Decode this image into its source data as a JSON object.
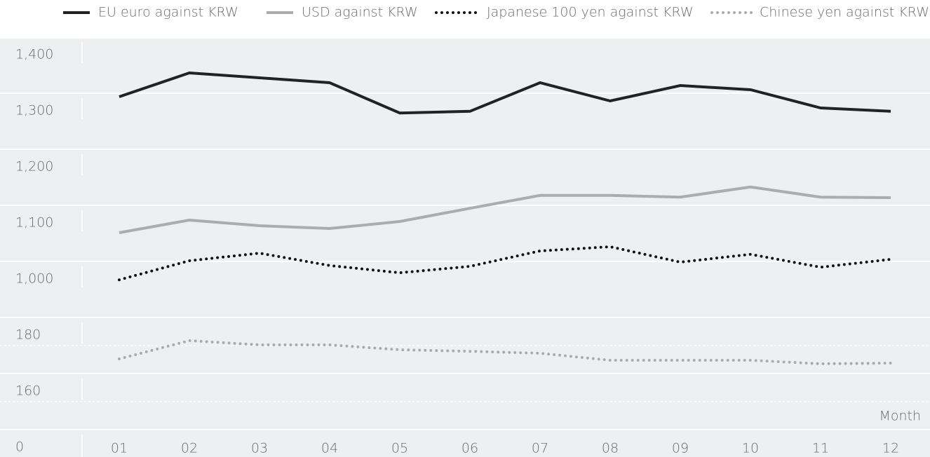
{
  "chart_data": {
    "type": "line",
    "x_label": "Month",
    "categories": [
      "01",
      "02",
      "03",
      "04",
      "05",
      "06",
      "07",
      "08",
      "09",
      "10",
      "11",
      "12"
    ],
    "series": [
      {
        "name": "EU euro against KRW",
        "color": "#222222",
        "style": "solid",
        "values": [
          1325,
          1367.5,
          1358.75,
          1350,
          1296,
          1299,
          1350,
          1317.5,
          1345,
          1337.5,
          1305,
          1299
        ]
      },
      {
        "name": "USD against KRW",
        "color": "#aaacaf",
        "style": "solid",
        "values": [
          1082.5,
          1105,
          1095,
          1090,
          1102.5,
          1126,
          1149,
          1149,
          1146,
          1164,
          1146,
          1145
        ]
      },
      {
        "name": "Japanese 100 yen against KRW",
        "color": "#111111",
        "style": "dotted",
        "values": [
          987.5,
          1032.5,
          1046,
          1024,
          1011,
          1022.5,
          1050,
          1057.5,
          1030,
          1044,
          1021,
          1035
        ]
      },
      {
        "name": "Chinese yen against KRW",
        "color": "#a9abae",
        "style": "dotted",
        "values": [
          171.5,
          178,
          176.5,
          176.5,
          174.75,
          174.2,
          173.5,
          171,
          171,
          171,
          169.75,
          170
        ]
      }
    ],
    "ylim": [
      0,
      1400
    ],
    "axis_break": true,
    "yticks": [
      0,
      160,
      180,
      {
        "value": 1000,
        "label": "1,000"
      },
      {
        "value": 1100,
        "label": "1,100"
      },
      {
        "value": 1200,
        "label": "1,200"
      },
      {
        "value": 1300,
        "label": "1,300"
      },
      {
        "value": 1400,
        "label": "1,400"
      }
    ],
    "grid": true,
    "legend": "top"
  }
}
